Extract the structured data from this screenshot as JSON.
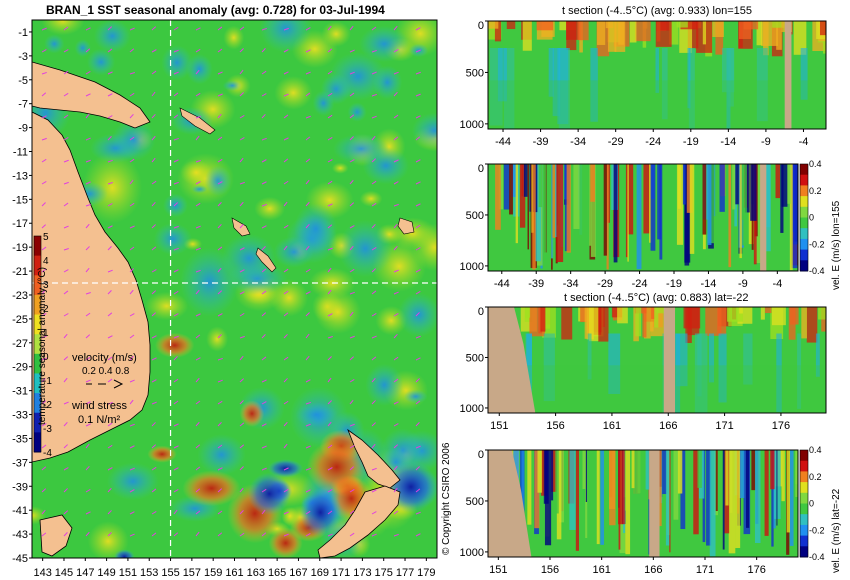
{
  "chart_data": [
    {
      "type": "heatmap",
      "title": "BRAN_1 SST seasonal anomaly (avg: 0.728) for 03-Jul-1994",
      "xticks": [
        "143",
        "145",
        "147",
        "149",
        "151",
        "153",
        "155",
        "157",
        "159",
        "161",
        "163",
        "165",
        "167",
        "169",
        "171",
        "173",
        "175",
        "177",
        "179"
      ],
      "yticks": [
        "-1",
        "-3",
        "-5",
        "-7",
        "-9",
        "-11",
        "-13",
        "-15",
        "-17",
        "-19",
        "-21",
        "-23",
        "-25",
        "-27",
        "-29",
        "-31",
        "-33",
        "-35",
        "-37",
        "-39",
        "-41",
        "-43",
        "-45"
      ],
      "xlim": [
        142,
        180
      ],
      "ylim": [
        -45,
        0
      ],
      "section_lon": 155,
      "section_lat": -22,
      "colorbar": {
        "label": "temperature seasonal anomaly (°C)",
        "ticks": [
          "5",
          "4",
          "3",
          "2",
          "1",
          "0",
          "-1",
          "-2",
          "-3",
          "-4"
        ],
        "range": [
          -4,
          5
        ]
      },
      "velocity_legend": {
        "label": "velocity (m/s)",
        "ticks": "0.2 0.4 0.8"
      },
      "wind_legend": {
        "label": "wind stress",
        "value": "0.1 N/m²"
      },
      "colors": {
        "land": "#f4c090",
        "ocean_base": "#35c83a",
        "vectors": "#e040e0"
      }
    },
    {
      "type": "heatmap",
      "title": "t section (-4..5°C) (avg: 0.933) lon=155",
      "xticks": [
        "-44",
        "-39",
        "-34",
        "-29",
        "-24",
        "-19",
        "-14",
        "-9",
        "-4"
      ],
      "yticks": [
        "0",
        "500",
        "1000"
      ],
      "xlim": [
        -46,
        -1
      ],
      "ylim": [
        1050,
        0
      ]
    },
    {
      "type": "heatmap",
      "title": "",
      "xticks": [
        "-44",
        "-39",
        "-34",
        "-29",
        "-24",
        "-19",
        "-14",
        "-9",
        "-4"
      ],
      "yticks": [
        "0",
        "500",
        "1000"
      ],
      "xlim": [
        -46,
        -1
      ],
      "ylim": [
        1050,
        0
      ],
      "colorbar": {
        "label": "vel. E (m/s) lon=155",
        "ticks": [
          "0.4",
          "0.2",
          "0",
          "-0.2",
          "-0.4"
        ],
        "range": [
          -0.4,
          0.4
        ]
      }
    },
    {
      "type": "heatmap",
      "title": "t section (-4..5°C) (avg: 0.883) lat=-22",
      "xticks": [
        "151",
        "156",
        "161",
        "166",
        "171",
        "176"
      ],
      "yticks": [
        "0",
        "500",
        "1000"
      ],
      "xlim": [
        150,
        180
      ],
      "ylim": [
        1050,
        0
      ]
    },
    {
      "type": "heatmap",
      "title": "",
      "xticks": [
        "151",
        "156",
        "161",
        "166",
        "171",
        "176"
      ],
      "yticks": [
        "0",
        "500",
        "1000"
      ],
      "xlim": [
        150,
        180
      ],
      "ylim": [
        1050,
        0
      ],
      "colorbar": {
        "label": "vel. E (m/s) lat=-22",
        "ticks": [
          "0.4",
          "0.2",
          "0",
          "-0.2",
          "-0.4"
        ],
        "range": [
          -0.4,
          0.4
        ]
      }
    }
  ],
  "copyright": "© Copyright CSIRO 2006"
}
